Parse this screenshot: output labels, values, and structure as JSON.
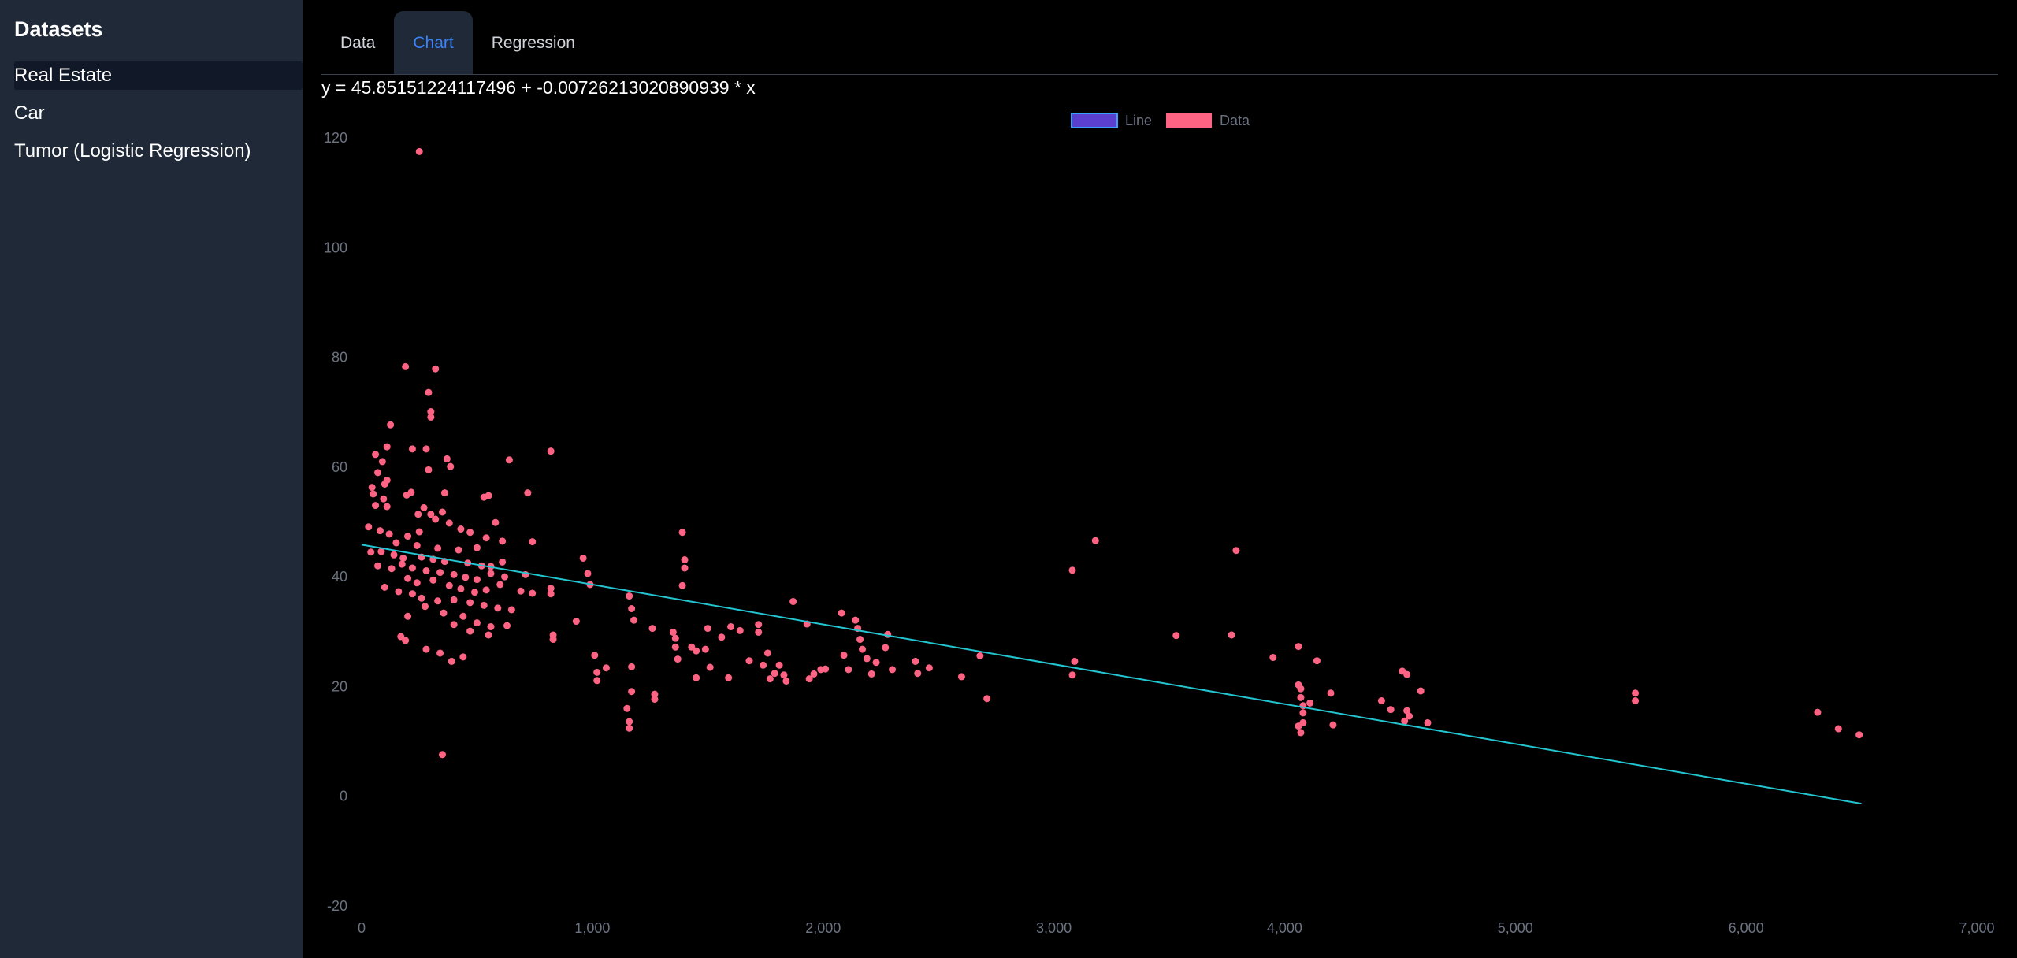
{
  "sidebar": {
    "title": "Datasets",
    "items": [
      {
        "label": "Real Estate",
        "active": true
      },
      {
        "label": "Car",
        "active": false
      },
      {
        "label": "Tumor (Logistic Regression)",
        "active": false
      }
    ]
  },
  "tabs": [
    {
      "label": "Data",
      "active": false
    },
    {
      "label": "Chart",
      "active": true
    },
    {
      "label": "Regression",
      "active": false
    }
  ],
  "equation": "y = 45.85151224117496 + -0.00726213020890939 * x",
  "colors": {
    "sidebar_bg": "#1f2937",
    "tab_active": "#3b82f6",
    "data_point": "#ff6384",
    "line": "#22c5d0",
    "line_legend_fill": "#5b3fcf",
    "line_legend_border": "#3aa0ff"
  },
  "chart_data": {
    "type": "scatter",
    "legend": [
      "Line",
      "Data"
    ],
    "legend_position": "top",
    "xlim": [
      0,
      7000
    ],
    "ylim": [
      -20,
      120
    ],
    "x_ticks": [
      0,
      1000,
      2000,
      3000,
      4000,
      5000,
      6000,
      7000
    ],
    "x_tick_labels": [
      "0",
      "1,000",
      "2,000",
      "3,000",
      "4,000",
      "5,000",
      "6,000",
      "7,000"
    ],
    "y_ticks": [
      -20,
      0,
      20,
      40,
      60,
      80,
      100,
      120
    ],
    "y_tick_labels": [
      "-20",
      "0",
      "20",
      "40",
      "60",
      "80",
      "100",
      "120"
    ],
    "grid": false,
    "line": {
      "name": "Line",
      "intercept": 45.85151224117496,
      "slope": -0.00726213020890939,
      "x": [
        0,
        6500
      ]
    },
    "series": [
      {
        "name": "Data",
        "points": [
          [
            250,
            117.5
          ],
          [
            350,
            7.6
          ],
          [
            190,
            78.3
          ],
          [
            320,
            77.9
          ],
          [
            290,
            73.6
          ],
          [
            300,
            70.1
          ],
          [
            300,
            69.1
          ],
          [
            125,
            67.7
          ],
          [
            220,
            63.3
          ],
          [
            280,
            63.3
          ],
          [
            110,
            63.7
          ],
          [
            60,
            62.3
          ],
          [
            370,
            61.5
          ],
          [
            640,
            61.3
          ],
          [
            820,
            62.9
          ],
          [
            385,
            60.1
          ],
          [
            90,
            61.0
          ],
          [
            290,
            59.5
          ],
          [
            70,
            59.0
          ],
          [
            110,
            57.6
          ],
          [
            100,
            56.9
          ],
          [
            45,
            56.3
          ],
          [
            50,
            55.1
          ],
          [
            95,
            54.2
          ],
          [
            215,
            55.4
          ],
          [
            195,
            54.9
          ],
          [
            360,
            55.3
          ],
          [
            530,
            54.5
          ],
          [
            550,
            54.8
          ],
          [
            720,
            55.3
          ],
          [
            60,
            53.0
          ],
          [
            110,
            52.8
          ],
          [
            270,
            52.6
          ],
          [
            245,
            51.4
          ],
          [
            300,
            51.4
          ],
          [
            350,
            51.8
          ],
          [
            320,
            50.5
          ],
          [
            380,
            49.8
          ],
          [
            430,
            48.7
          ],
          [
            470,
            48.1
          ],
          [
            580,
            49.9
          ],
          [
            30,
            49.1
          ],
          [
            80,
            48.4
          ],
          [
            120,
            47.8
          ],
          [
            200,
            47.4
          ],
          [
            250,
            48.2
          ],
          [
            540,
            47.1
          ],
          [
            610,
            46.5
          ],
          [
            740,
            46.4
          ],
          [
            150,
            46.2
          ],
          [
            240,
            45.7
          ],
          [
            330,
            45.2
          ],
          [
            420,
            44.9
          ],
          [
            500,
            45.3
          ],
          [
            40,
            44.5
          ],
          [
            85,
            44.6
          ],
          [
            140,
            44.0
          ],
          [
            180,
            43.4
          ],
          [
            260,
            43.6
          ],
          [
            310,
            43.2
          ],
          [
            360,
            42.8
          ],
          [
            460,
            42.5
          ],
          [
            520,
            42.0
          ],
          [
            560,
            41.9
          ],
          [
            610,
            42.7
          ],
          [
            70,
            42.0
          ],
          [
            175,
            42.3
          ],
          [
            220,
            41.6
          ],
          [
            280,
            41.1
          ],
          [
            340,
            40.8
          ],
          [
            400,
            40.4
          ],
          [
            450,
            39.9
          ],
          [
            500,
            39.5
          ],
          [
            560,
            40.6
          ],
          [
            620,
            40.0
          ],
          [
            710,
            40.4
          ],
          [
            130,
            41.5
          ],
          [
            200,
            39.7
          ],
          [
            240,
            38.9
          ],
          [
            310,
            39.4
          ],
          [
            380,
            38.4
          ],
          [
            430,
            37.8
          ],
          [
            490,
            37.2
          ],
          [
            540,
            37.6
          ],
          [
            600,
            38.6
          ],
          [
            690,
            37.4
          ],
          [
            740,
            37.0
          ],
          [
            820,
            37.9
          ],
          [
            100,
            38.1
          ],
          [
            160,
            37.3
          ],
          [
            220,
            36.9
          ],
          [
            260,
            36.1
          ],
          [
            330,
            35.6
          ],
          [
            400,
            35.8
          ],
          [
            470,
            35.3
          ],
          [
            530,
            34.8
          ],
          [
            590,
            34.3
          ],
          [
            650,
            34.0
          ],
          [
            820,
            36.9
          ],
          [
            275,
            34.6
          ],
          [
            355,
            33.4
          ],
          [
            440,
            32.8
          ],
          [
            500,
            31.6
          ],
          [
            560,
            30.9
          ],
          [
            630,
            31.1
          ],
          [
            200,
            32.8
          ],
          [
            400,
            31.3
          ],
          [
            470,
            30.1
          ],
          [
            550,
            29.4
          ],
          [
            170,
            29.1
          ],
          [
            190,
            28.4
          ],
          [
            280,
            26.8
          ],
          [
            340,
            26.1
          ],
          [
            440,
            25.4
          ],
          [
            390,
            24.6
          ],
          [
            830,
            29.4
          ],
          [
            830,
            28.6
          ],
          [
            930,
            31.9
          ],
          [
            960,
            43.4
          ],
          [
            980,
            40.6
          ],
          [
            990,
            38.6
          ],
          [
            1010,
            25.7
          ],
          [
            1020,
            22.6
          ],
          [
            1020,
            21.1
          ],
          [
            1060,
            23.4
          ],
          [
            1160,
            36.5
          ],
          [
            1170,
            34.2
          ],
          [
            1180,
            32.1
          ],
          [
            1150,
            16.0
          ],
          [
            1160,
            13.6
          ],
          [
            1160,
            12.4
          ],
          [
            1170,
            19.1
          ],
          [
            1170,
            23.6
          ],
          [
            1260,
            30.6
          ],
          [
            1270,
            18.6
          ],
          [
            1270,
            17.7
          ],
          [
            1350,
            29.9
          ],
          [
            1360,
            28.8
          ],
          [
            1360,
            27.2
          ],
          [
            1370,
            25.0
          ],
          [
            1390,
            48.1
          ],
          [
            1400,
            43.1
          ],
          [
            1400,
            41.6
          ],
          [
            1390,
            38.4
          ],
          [
            1430,
            27.2
          ],
          [
            1450,
            21.6
          ],
          [
            1450,
            26.5
          ],
          [
            1490,
            26.8
          ],
          [
            1500,
            30.6
          ],
          [
            1510,
            23.5
          ],
          [
            1560,
            29.0
          ],
          [
            1590,
            21.6
          ],
          [
            1600,
            30.9
          ],
          [
            1640,
            30.2
          ],
          [
            1680,
            24.7
          ],
          [
            1720,
            31.3
          ],
          [
            1720,
            29.9
          ],
          [
            1740,
            23.9
          ],
          [
            1760,
            26.1
          ],
          [
            1770,
            21.4
          ],
          [
            1790,
            22.4
          ],
          [
            1810,
            23.9
          ],
          [
            1830,
            22.1
          ],
          [
            1840,
            21.0
          ],
          [
            1870,
            35.5
          ],
          [
            1930,
            31.4
          ],
          [
            1940,
            21.4
          ],
          [
            1960,
            22.3
          ],
          [
            1990,
            23.1
          ],
          [
            2010,
            23.2
          ],
          [
            2080,
            33.4
          ],
          [
            2090,
            25.7
          ],
          [
            2110,
            23.1
          ],
          [
            2140,
            32.1
          ],
          [
            2150,
            30.6
          ],
          [
            2160,
            28.6
          ],
          [
            2170,
            26.8
          ],
          [
            2190,
            25.1
          ],
          [
            2210,
            22.3
          ],
          [
            2230,
            24.4
          ],
          [
            2270,
            27.1
          ],
          [
            2280,
            29.5
          ],
          [
            2300,
            23.1
          ],
          [
            2400,
            24.6
          ],
          [
            2410,
            22.4
          ],
          [
            2460,
            23.4
          ],
          [
            2600,
            21.8
          ],
          [
            2680,
            25.6
          ],
          [
            2710,
            17.8
          ],
          [
            3080,
            41.2
          ],
          [
            3080,
            22.1
          ],
          [
            3090,
            24.6
          ],
          [
            3180,
            46.6
          ],
          [
            3530,
            29.3
          ],
          [
            3770,
            29.4
          ],
          [
            3790,
            44.8
          ],
          [
            3950,
            25.3
          ],
          [
            4060,
            27.3
          ],
          [
            4060,
            20.3
          ],
          [
            4070,
            19.6
          ],
          [
            4070,
            18.0
          ],
          [
            4080,
            16.5
          ],
          [
            4080,
            15.2
          ],
          [
            4060,
            12.8
          ],
          [
            4070,
            11.6
          ],
          [
            4080,
            13.4
          ],
          [
            4110,
            17.0
          ],
          [
            4140,
            24.7
          ],
          [
            4200,
            18.8
          ],
          [
            4210,
            13.0
          ],
          [
            4420,
            17.4
          ],
          [
            4460,
            15.8
          ],
          [
            4510,
            22.8
          ],
          [
            4530,
            22.2
          ],
          [
            4530,
            15.6
          ],
          [
            4520,
            13.7
          ],
          [
            4540,
            14.6
          ],
          [
            4590,
            19.2
          ],
          [
            4620,
            13.4
          ],
          [
            5520,
            18.8
          ],
          [
            5520,
            17.4
          ],
          [
            6310,
            15.3
          ],
          [
            6400,
            12.3
          ],
          [
            6490,
            11.2
          ]
        ]
      }
    ]
  }
}
